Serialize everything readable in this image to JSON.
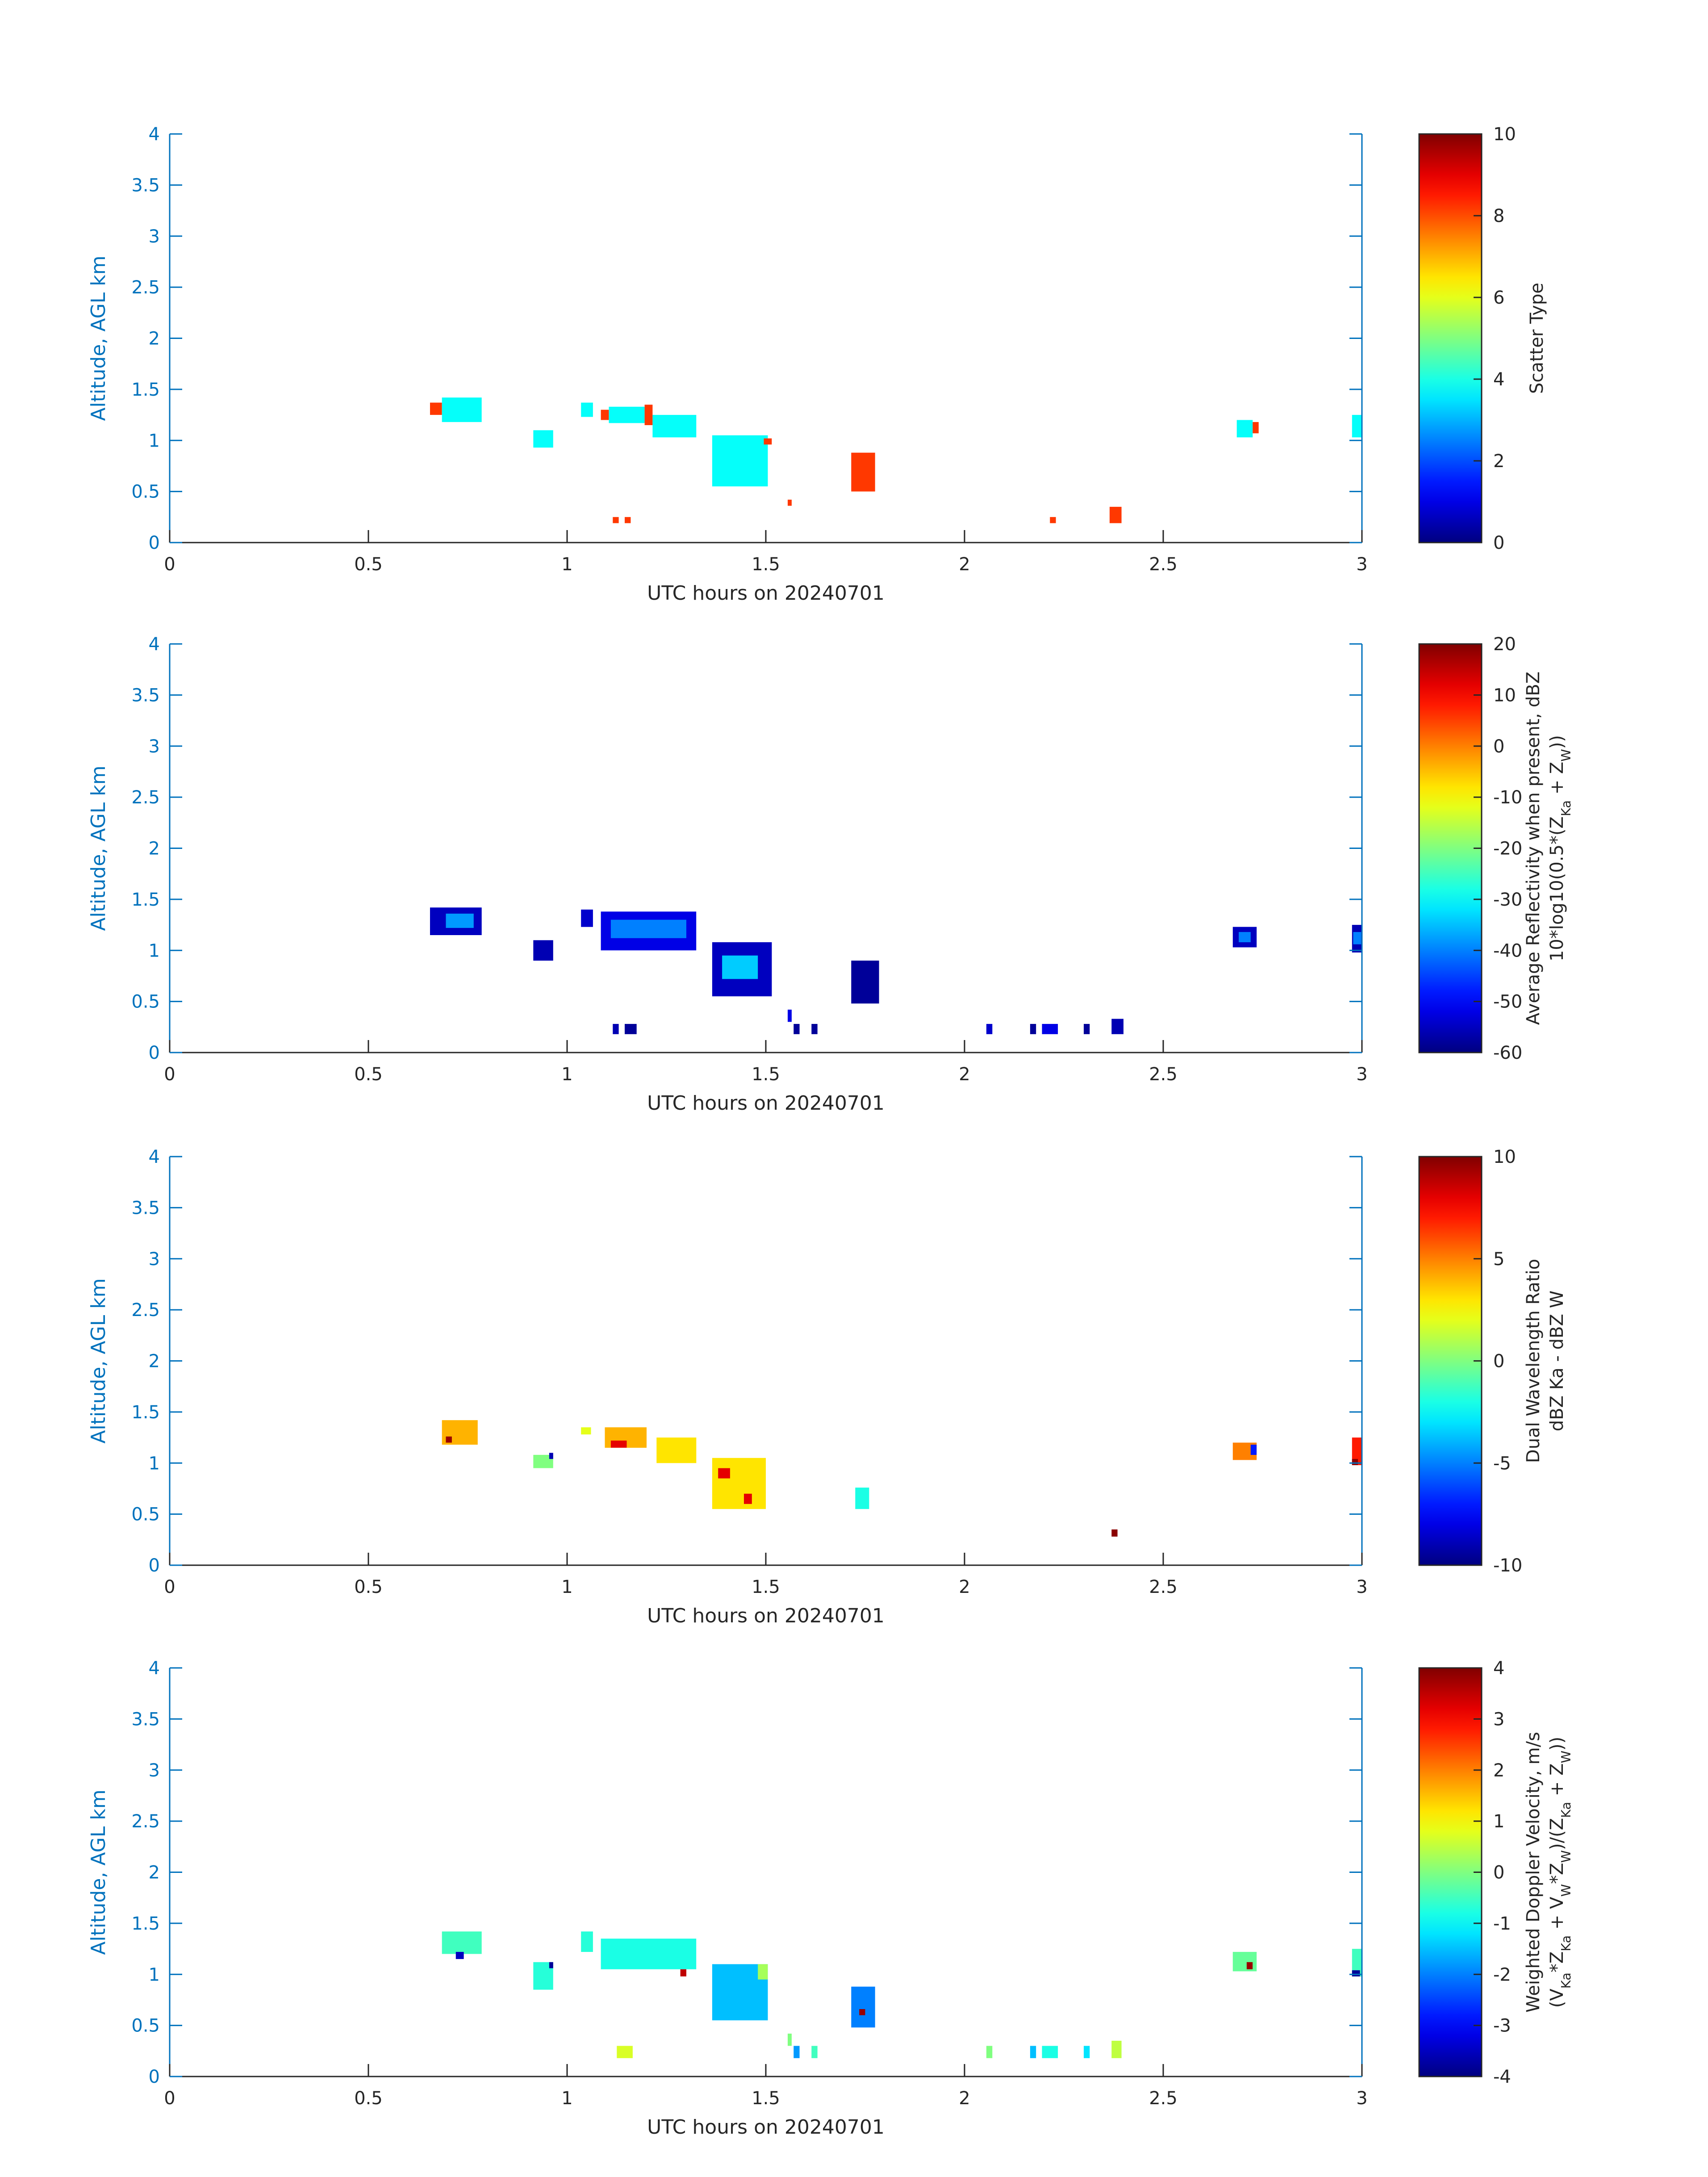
{
  "chart_data": [
    {
      "type": "heatmap",
      "xlabel": "UTC hours on 20240701",
      "ylabel": "Altitude, AGL km",
      "xlim": [
        0,
        3
      ],
      "ylim": [
        0,
        4
      ],
      "x_ticks": [
        "0",
        "0.5",
        "1",
        "1.5",
        "2",
        "2.5",
        "3"
      ],
      "y_ticks": [
        "0",
        "0.5",
        "1",
        "1.5",
        "2",
        "2.5",
        "3",
        "3.5",
        "4"
      ],
      "colormap": "jet",
      "colorbar": {
        "label_lines": [
          "Scatter Type"
        ],
        "range": [
          0,
          10
        ],
        "ticks": [
          "0",
          "2",
          "4",
          "6",
          "8",
          "10"
        ]
      },
      "cells": [
        {
          "x0": 0.655,
          "x1": 0.685,
          "y0": 1.25,
          "y1": 1.37,
          "v": 8.2
        },
        {
          "x0": 0.685,
          "x1": 0.785,
          "y0": 1.18,
          "y1": 1.42,
          "v": 3.8
        },
        {
          "x0": 0.915,
          "x1": 0.965,
          "y0": 0.93,
          "y1": 1.1,
          "v": 3.8
        },
        {
          "x0": 1.035,
          "x1": 1.065,
          "y0": 1.23,
          "y1": 1.37,
          "v": 3.8
        },
        {
          "x0": 1.085,
          "x1": 1.105,
          "y0": 1.2,
          "y1": 1.3,
          "v": 8.2
        },
        {
          "x0": 1.105,
          "x1": 1.195,
          "y0": 1.17,
          "y1": 1.33,
          "v": 3.8
        },
        {
          "x0": 1.195,
          "x1": 1.215,
          "y0": 1.15,
          "y1": 1.35,
          "v": 8.2
        },
        {
          "x0": 1.215,
          "x1": 1.325,
          "y0": 1.03,
          "y1": 1.25,
          "v": 3.8
        },
        {
          "x0": 1.365,
          "x1": 1.505,
          "y0": 0.55,
          "y1": 1.05,
          "v": 3.8
        },
        {
          "x0": 1.495,
          "x1": 1.515,
          "y0": 0.96,
          "y1": 1.02,
          "v": 8.2
        },
        {
          "x0": 1.555,
          "x1": 1.565,
          "y0": 0.36,
          "y1": 0.42,
          "v": 8.2
        },
        {
          "x0": 1.715,
          "x1": 1.775,
          "y0": 0.5,
          "y1": 0.88,
          "v": 8.2
        },
        {
          "x0": 1.115,
          "x1": 1.13,
          "y0": 0.19,
          "y1": 0.25,
          "v": 8.2
        },
        {
          "x0": 1.145,
          "x1": 1.16,
          "y0": 0.19,
          "y1": 0.25,
          "v": 8.2
        },
        {
          "x0": 2.215,
          "x1": 2.23,
          "y0": 0.19,
          "y1": 0.25,
          "v": 8.2
        },
        {
          "x0": 2.365,
          "x1": 2.395,
          "y0": 0.19,
          "y1": 0.35,
          "v": 8.2
        },
        {
          "x0": 2.685,
          "x1": 2.725,
          "y0": 1.03,
          "y1": 1.2,
          "v": 3.8
        },
        {
          "x0": 2.725,
          "x1": 2.74,
          "y0": 1.07,
          "y1": 1.18,
          "v": 8.2
        },
        {
          "x0": 2.975,
          "x1": 3.0,
          "y0": 1.03,
          "y1": 1.25,
          "v": 3.8
        }
      ]
    },
    {
      "type": "heatmap",
      "xlabel": "UTC hours on 20240701",
      "ylabel": "Altitude, AGL km",
      "xlim": [
        0,
        3
      ],
      "ylim": [
        0,
        4
      ],
      "x_ticks": [
        "0",
        "0.5",
        "1",
        "1.5",
        "2",
        "2.5",
        "3"
      ],
      "y_ticks": [
        "0",
        "0.5",
        "1",
        "1.5",
        "2",
        "2.5",
        "3",
        "3.5",
        "4"
      ],
      "colormap": "jet",
      "colorbar": {
        "label_lines": [
          "Average Reflectivity when present, dBZ",
          "10*log10(0.5*(Z_Ka + Z_W))"
        ],
        "range": [
          -60,
          20
        ],
        "ticks": [
          "-60",
          "-50",
          "-40",
          "-30",
          "-20",
          "-10",
          "0",
          "10",
          "20"
        ]
      },
      "cells": [
        {
          "x0": 0.655,
          "x1": 0.785,
          "y0": 1.15,
          "y1": 1.42,
          "v": -55
        },
        {
          "x0": 0.695,
          "x1": 0.765,
          "y0": 1.22,
          "y1": 1.36,
          "v": -38
        },
        {
          "x0": 0.915,
          "x1": 0.965,
          "y0": 0.9,
          "y1": 1.1,
          "v": -56
        },
        {
          "x0": 1.035,
          "x1": 1.065,
          "y0": 1.23,
          "y1": 1.4,
          "v": -54
        },
        {
          "x0": 1.085,
          "x1": 1.325,
          "y0": 1.0,
          "y1": 1.38,
          "v": -52
        },
        {
          "x0": 1.11,
          "x1": 1.3,
          "y0": 1.12,
          "y1": 1.3,
          "v": -40
        },
        {
          "x0": 1.365,
          "x1": 1.515,
          "y0": 0.55,
          "y1": 1.08,
          "v": -55
        },
        {
          "x0": 1.39,
          "x1": 1.48,
          "y0": 0.72,
          "y1": 0.95,
          "v": -34
        },
        {
          "x0": 1.555,
          "x1": 1.565,
          "y0": 0.3,
          "y1": 0.42,
          "v": -52
        },
        {
          "x0": 1.715,
          "x1": 1.785,
          "y0": 0.48,
          "y1": 0.9,
          "v": -58
        },
        {
          "x0": 1.115,
          "x1": 1.13,
          "y0": 0.18,
          "y1": 0.28,
          "v": -56
        },
        {
          "x0": 1.145,
          "x1": 1.175,
          "y0": 0.18,
          "y1": 0.28,
          "v": -58
        },
        {
          "x0": 1.57,
          "x1": 1.585,
          "y0": 0.18,
          "y1": 0.28,
          "v": -58
        },
        {
          "x0": 1.615,
          "x1": 1.63,
          "y0": 0.18,
          "y1": 0.28,
          "v": -58
        },
        {
          "x0": 2.055,
          "x1": 2.07,
          "y0": 0.18,
          "y1": 0.28,
          "v": -54
        },
        {
          "x0": 2.165,
          "x1": 2.18,
          "y0": 0.18,
          "y1": 0.28,
          "v": -58
        },
        {
          "x0": 2.195,
          "x1": 2.235,
          "y0": 0.18,
          "y1": 0.28,
          "v": -52
        },
        {
          "x0": 2.3,
          "x1": 2.315,
          "y0": 0.18,
          "y1": 0.28,
          "v": -58
        },
        {
          "x0": 2.37,
          "x1": 2.4,
          "y0": 0.18,
          "y1": 0.33,
          "v": -56
        },
        {
          "x0": 2.675,
          "x1": 2.735,
          "y0": 1.03,
          "y1": 1.23,
          "v": -55
        },
        {
          "x0": 2.69,
          "x1": 2.72,
          "y0": 1.08,
          "y1": 1.18,
          "v": -40
        },
        {
          "x0": 2.975,
          "x1": 3.0,
          "y0": 0.98,
          "y1": 1.25,
          "v": -56
        },
        {
          "x0": 2.978,
          "x1": 2.998,
          "y0": 1.06,
          "y1": 1.18,
          "v": -40
        }
      ]
    },
    {
      "type": "heatmap",
      "xlabel": "UTC hours on 20240701",
      "ylabel": "Altitude, AGL km",
      "xlim": [
        0,
        3
      ],
      "ylim": [
        0,
        4
      ],
      "x_ticks": [
        "0",
        "0.5",
        "1",
        "1.5",
        "2",
        "2.5",
        "3"
      ],
      "y_ticks": [
        "0",
        "0.5",
        "1",
        "1.5",
        "2",
        "2.5",
        "3",
        "3.5",
        "4"
      ],
      "colormap": "jet",
      "colorbar": {
        "label_lines": [
          "Dual Wavelength Ratio",
          "dBZ Ka - dBZ W"
        ],
        "range": [
          -10,
          10
        ],
        "ticks": [
          "-10",
          "-5",
          "0",
          "5",
          "10"
        ]
      },
      "cells": [
        {
          "x0": 0.685,
          "x1": 0.775,
          "y0": 1.18,
          "y1": 1.42,
          "v": 4
        },
        {
          "x0": 0.695,
          "x1": 0.71,
          "y0": 1.2,
          "y1": 1.26,
          "v": 9.5
        },
        {
          "x0": 0.915,
          "x1": 0.965,
          "y0": 0.95,
          "y1": 1.08,
          "v": 0
        },
        {
          "x0": 0.955,
          "x1": 0.965,
          "y0": 1.04,
          "y1": 1.1,
          "v": -9
        },
        {
          "x0": 1.035,
          "x1": 1.06,
          "y0": 1.28,
          "y1": 1.35,
          "v": 2
        },
        {
          "x0": 1.095,
          "x1": 1.2,
          "y0": 1.15,
          "y1": 1.35,
          "v": 4
        },
        {
          "x0": 1.11,
          "x1": 1.15,
          "y0": 1.15,
          "y1": 1.22,
          "v": 8
        },
        {
          "x0": 1.225,
          "x1": 1.325,
          "y0": 1.0,
          "y1": 1.25,
          "v": 3
        },
        {
          "x0": 1.365,
          "x1": 1.5,
          "y0": 0.55,
          "y1": 1.05,
          "v": 3
        },
        {
          "x0": 1.38,
          "x1": 1.41,
          "y0": 0.85,
          "y1": 0.95,
          "v": 8
        },
        {
          "x0": 1.445,
          "x1": 1.465,
          "y0": 0.6,
          "y1": 0.7,
          "v": 8
        },
        {
          "x0": 1.725,
          "x1": 1.76,
          "y0": 0.55,
          "y1": 0.76,
          "v": -2
        },
        {
          "x0": 2.37,
          "x1": 2.385,
          "y0": 0.28,
          "y1": 0.35,
          "v": 9.8
        },
        {
          "x0": 2.675,
          "x1": 2.735,
          "y0": 1.03,
          "y1": 1.2,
          "v": 5
        },
        {
          "x0": 2.72,
          "x1": 2.735,
          "y0": 1.08,
          "y1": 1.18,
          "v": -7
        },
        {
          "x0": 2.975,
          "x1": 3.0,
          "y0": 0.98,
          "y1": 1.25,
          "v": 7
        },
        {
          "x0": 2.975,
          "x1": 2.99,
          "y0": 0.98,
          "y1": 1.04,
          "v": 9.8
        }
      ]
    },
    {
      "type": "heatmap",
      "xlabel": "UTC hours on 20240701",
      "ylabel": "Altitude, AGL km",
      "xlim": [
        0,
        3
      ],
      "ylim": [
        0,
        4
      ],
      "x_ticks": [
        "0",
        "0.5",
        "1",
        "1.5",
        "2",
        "2.5",
        "3"
      ],
      "y_ticks": [
        "0",
        "0.5",
        "1",
        "1.5",
        "2",
        "2.5",
        "3",
        "3.5",
        "4"
      ],
      "colormap": "jet",
      "colorbar": {
        "label_lines": [
          "Weighted Doppler Velocity, m/s",
          "(V_Ka*Z_Ka + V_W*Z_W)/(Z_Ka + Z_W))"
        ],
        "range": [
          -4,
          4
        ],
        "ticks": [
          "-4",
          "-3",
          "-2",
          "-1",
          "0",
          "1",
          "2",
          "3",
          "4"
        ]
      },
      "cells": [
        {
          "x0": 0.685,
          "x1": 0.785,
          "y0": 1.2,
          "y1": 1.42,
          "v": -0.5
        },
        {
          "x0": 0.72,
          "x1": 0.74,
          "y0": 1.15,
          "y1": 1.22,
          "v": -3.5
        },
        {
          "x0": 0.915,
          "x1": 0.965,
          "y0": 0.85,
          "y1": 1.12,
          "v": -0.7
        },
        {
          "x0": 0.955,
          "x1": 0.965,
          "y0": 1.06,
          "y1": 1.12,
          "v": -3.8
        },
        {
          "x0": 1.035,
          "x1": 1.065,
          "y0": 1.22,
          "y1": 1.42,
          "v": -0.7
        },
        {
          "x0": 1.085,
          "x1": 1.325,
          "y0": 1.05,
          "y1": 1.35,
          "v": -0.8
        },
        {
          "x0": 1.285,
          "x1": 1.3,
          "y0": 0.98,
          "y1": 1.05,
          "v": 3.5
        },
        {
          "x0": 1.365,
          "x1": 1.505,
          "y0": 0.55,
          "y1": 1.1,
          "v": -1.5
        },
        {
          "x0": 1.48,
          "x1": 1.505,
          "y0": 0.95,
          "y1": 1.1,
          "v": 0.3
        },
        {
          "x0": 1.715,
          "x1": 1.775,
          "y0": 0.48,
          "y1": 0.88,
          "v": -2
        },
        {
          "x0": 1.735,
          "x1": 1.75,
          "y0": 0.6,
          "y1": 0.66,
          "v": 3.8
        },
        {
          "x0": 1.125,
          "x1": 1.165,
          "y0": 0.18,
          "y1": 0.3,
          "v": 0.7
        },
        {
          "x0": 1.555,
          "x1": 1.565,
          "y0": 0.3,
          "y1": 0.42,
          "v": 0
        },
        {
          "x0": 1.57,
          "x1": 1.585,
          "y0": 0.18,
          "y1": 0.3,
          "v": -1.8
        },
        {
          "x0": 1.615,
          "x1": 1.63,
          "y0": 0.18,
          "y1": 0.3,
          "v": -0.5
        },
        {
          "x0": 2.055,
          "x1": 2.07,
          "y0": 0.18,
          "y1": 0.3,
          "v": 0
        },
        {
          "x0": 2.165,
          "x1": 2.18,
          "y0": 0.18,
          "y1": 0.3,
          "v": -1.5
        },
        {
          "x0": 2.195,
          "x1": 2.235,
          "y0": 0.18,
          "y1": 0.3,
          "v": -0.8
        },
        {
          "x0": 2.3,
          "x1": 2.315,
          "y0": 0.18,
          "y1": 0.3,
          "v": -1.2
        },
        {
          "x0": 2.37,
          "x1": 2.395,
          "y0": 0.18,
          "y1": 0.35,
          "v": 0.5
        },
        {
          "x0": 2.675,
          "x1": 2.735,
          "y0": 1.03,
          "y1": 1.22,
          "v": -0.2
        },
        {
          "x0": 2.71,
          "x1": 2.725,
          "y0": 1.05,
          "y1": 1.12,
          "v": 3.8
        },
        {
          "x0": 2.975,
          "x1": 3.0,
          "y0": 0.98,
          "y1": 1.25,
          "v": -0.5
        },
        {
          "x0": 2.975,
          "x1": 2.995,
          "y0": 0.98,
          "y1": 1.04,
          "v": -3.8
        }
      ]
    }
  ]
}
